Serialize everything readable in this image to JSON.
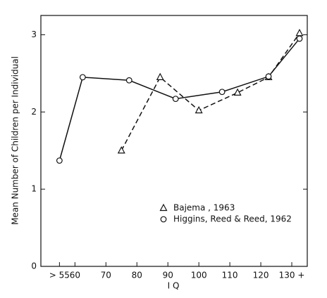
{
  "chart_data": {
    "type": "line",
    "xlabel": "I Q",
    "ylabel": "Mean Number of Children per Individual",
    "xlim": [
      49,
      135
    ],
    "ylim": [
      0,
      3.25
    ],
    "xticks": [
      {
        "value": 55,
        "label": "> 55"
      },
      60,
      70,
      80,
      90,
      100,
      110,
      120,
      {
        "value": 130,
        "label": "130 +"
      }
    ],
    "yticks": [
      0,
      1,
      2,
      3
    ],
    "legend": "lower right",
    "series": [
      {
        "name": "Bajema , 1963",
        "color": "#111111",
        "dash": true,
        "marker": "triangle",
        "x": [
          75,
          87.5,
          100,
          112.5,
          122.5,
          132.5
        ],
        "values": [
          1.5,
          2.45,
          2.02,
          2.25,
          2.45,
          3.02
        ]
      },
      {
        "name": "Higgins, Reed & Reed, 1962",
        "color": "#111111",
        "dash": false,
        "marker": "circle",
        "x": [
          55,
          62.5,
          77.5,
          92.5,
          107.5,
          122.5,
          132.5
        ],
        "values": [
          1.37,
          2.45,
          2.41,
          2.17,
          2.26,
          2.46,
          2.95
        ]
      }
    ]
  }
}
